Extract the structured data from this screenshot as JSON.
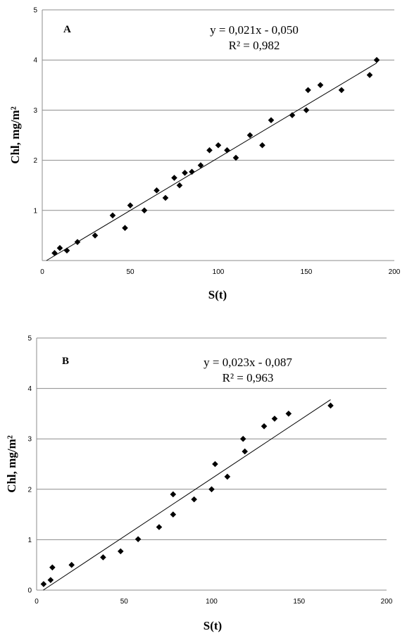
{
  "chart_data": [
    {
      "type": "scatter",
      "panel_label": "A",
      "xlabel": "S(t)",
      "ylabel": "Chl, mg/m²",
      "xlim": [
        0,
        200
      ],
      "ylim": [
        0,
        5
      ],
      "xticks": [
        "0",
        "50",
        "100",
        "150",
        "200"
      ],
      "yticks": [
        "1",
        "2",
        "3",
        "4",
        "5"
      ],
      "equation": "y = 0,021x - 0,050",
      "r2": "R² = 0,982",
      "trendline": {
        "slope": 0.021,
        "intercept": -0.05
      },
      "x": [
        7,
        10,
        14,
        20,
        30,
        40,
        47,
        50,
        58,
        65,
        70,
        75,
        78,
        81,
        85,
        90,
        95,
        100,
        105,
        110,
        118,
        125,
        130,
        142,
        150,
        151,
        158,
        170,
        186,
        190
      ],
      "y": [
        0.15,
        0.25,
        0.2,
        0.37,
        0.5,
        0.9,
        0.65,
        1.1,
        1.0,
        1.4,
        1.25,
        1.65,
        1.5,
        1.75,
        1.77,
        1.9,
        2.2,
        2.3,
        2.2,
        2.05,
        2.5,
        2.3,
        2.8,
        2.9,
        3.0,
        3.4,
        3.5,
        3.4,
        3.7,
        4.0
      ]
    },
    {
      "type": "scatter",
      "panel_label": "B",
      "xlabel": "S(t)",
      "ylabel": "Chl, mg/m²",
      "xlim": [
        0,
        200
      ],
      "ylim": [
        0,
        5
      ],
      "xticks": [
        "0",
        "50",
        "100",
        "150",
        "200"
      ],
      "yticks": [
        "0",
        "1",
        "2",
        "3",
        "4",
        "5"
      ],
      "equation": "y = 0,023x - 0,087",
      "r2": "R² = 0,963",
      "trendline": {
        "slope": 0.023,
        "intercept": -0.087
      },
      "x": [
        4,
        8,
        9,
        20,
        38,
        48,
        58,
        70,
        78,
        78,
        90,
        100,
        102,
        109,
        118,
        119,
        130,
        136,
        144,
        168
      ],
      "y": [
        0.12,
        0.2,
        0.45,
        0.5,
        0.65,
        0.77,
        1.01,
        1.25,
        1.9,
        1.5,
        1.8,
        2.0,
        2.5,
        2.25,
        3.0,
        2.75,
        3.25,
        3.4,
        3.5,
        3.66
      ]
    }
  ]
}
